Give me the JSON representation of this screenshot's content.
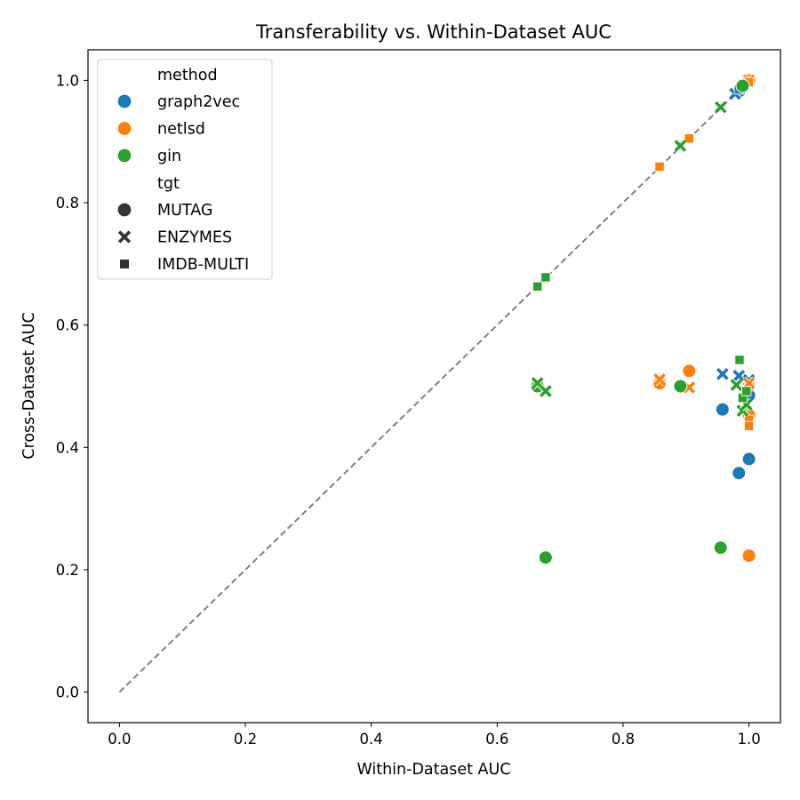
{
  "chart_data": {
    "type": "scatter",
    "title": "Transferability vs. Within-Dataset AUC",
    "xlabel": "Within-Dataset AUC",
    "ylabel": "Cross-Dataset AUC",
    "xlim": [
      -0.05,
      1.05
    ],
    "ylim": [
      -0.05,
      1.05
    ],
    "x_ticks": [
      "0.0",
      "0.2",
      "0.4",
      "0.6",
      "0.8",
      "1.0"
    ],
    "y_ticks": [
      "0.0",
      "0.2",
      "0.4",
      "0.6",
      "0.8",
      "1.0"
    ],
    "grid": false,
    "reference_line": {
      "from": [
        0,
        0
      ],
      "to": [
        1,
        1
      ],
      "style": "dashed",
      "color": "#808080"
    },
    "legend": {
      "placement": "top-left",
      "hue_title": "method",
      "style_title": "tgt",
      "methods": [
        {
          "name": "graph2vec",
          "color": "#1f77b4"
        },
        {
          "name": "netlsd",
          "color": "#ff7f0e"
        },
        {
          "name": "gin",
          "color": "#2ca02c"
        }
      ],
      "targets": [
        {
          "name": "MUTAG",
          "marker": "circle"
        },
        {
          "name": "ENZYMES",
          "marker": "x"
        },
        {
          "name": "IMDB-MULTI",
          "marker": "square"
        }
      ]
    },
    "series": [
      {
        "method": "graph2vec",
        "tgt": "MUTAG",
        "points": [
          [
            0.958,
            0.462
          ],
          [
            0.984,
            0.358
          ],
          [
            1.0,
            0.381
          ],
          [
            1.0,
            0.485
          ],
          [
            0.984,
            0.982
          ]
        ]
      },
      {
        "method": "graph2vec",
        "tgt": "ENZYMES",
        "points": [
          [
            0.958,
            0.52
          ],
          [
            0.984,
            0.517
          ],
          [
            1.0,
            0.51
          ],
          [
            0.978,
            0.978
          ]
        ]
      },
      {
        "method": "graph2vec",
        "tgt": "IMDB-MULTI",
        "points": [
          [
            0.984,
            0.985
          ],
          [
            1.0,
            0.5
          ]
        ]
      },
      {
        "method": "netlsd",
        "tgt": "MUTAG",
        "points": [
          [
            0.905,
            0.525
          ],
          [
            0.858,
            0.505
          ],
          [
            1.0,
            0.453
          ],
          [
            1.0,
            0.223
          ],
          [
            1.0,
            1.0
          ]
        ]
      },
      {
        "method": "netlsd",
        "tgt": "ENZYMES",
        "points": [
          [
            0.858,
            0.511
          ],
          [
            0.905,
            0.498
          ],
          [
            1.0,
            0.505
          ],
          [
            1.0,
            1.0
          ]
        ]
      },
      {
        "method": "netlsd",
        "tgt": "IMDB-MULTI",
        "points": [
          [
            0.858,
            0.859
          ],
          [
            0.905,
            0.905
          ],
          [
            1.0,
            0.445
          ],
          [
            1.0,
            0.435
          ],
          [
            1.0,
            0.997
          ]
        ]
      },
      {
        "method": "gin",
        "tgt": "MUTAG",
        "points": [
          [
            0.664,
            0.5
          ],
          [
            0.891,
            0.5
          ],
          [
            0.677,
            0.22
          ],
          [
            0.955,
            0.236
          ],
          [
            0.99,
            0.991
          ]
        ]
      },
      {
        "method": "gin",
        "tgt": "ENZYMES",
        "points": [
          [
            0.664,
            0.505
          ],
          [
            0.677,
            0.492
          ],
          [
            0.891,
            0.893
          ],
          [
            0.955,
            0.956
          ],
          [
            0.99,
            0.46
          ],
          [
            0.98,
            0.502
          ],
          [
            0.996,
            0.47
          ]
        ]
      },
      {
        "method": "gin",
        "tgt": "IMDB-MULTI",
        "points": [
          [
            0.664,
            0.663
          ],
          [
            0.677,
            0.678
          ],
          [
            0.985,
            0.543
          ],
          [
            0.99,
            0.481
          ],
          [
            0.996,
            0.492
          ]
        ]
      }
    ]
  }
}
